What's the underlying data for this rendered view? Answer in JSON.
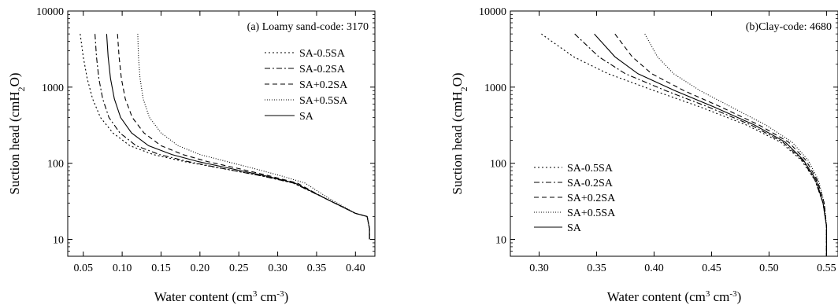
{
  "chart_data": [
    {
      "type": "line",
      "title": "(a) Loamy sand-code: 3170",
      "xlabel": "Water content (cm³ cm⁻³)",
      "ylabel": "Suction head (cmH₂O)",
      "xlim": [
        0.03,
        0.425
      ],
      "ylim": [
        6,
        10000
      ],
      "yscale": "log",
      "xticks": [
        0.05,
        0.1,
        0.15,
        0.2,
        0.25,
        0.3,
        0.35,
        0.4
      ],
      "xtick_labels": [
        "0.05",
        "0.10",
        "0.15",
        "0.20",
        "0.25",
        "0.30",
        "0.35",
        "0.40"
      ],
      "yticks": [
        10,
        100,
        1000,
        10000
      ],
      "ytick_labels": [
        "10",
        "100",
        "1000",
        "10000"
      ],
      "legend_position": "upper-right",
      "series": [
        {
          "name": "SA-0.5SA",
          "dash": "2,3",
          "x": [
            0.046,
            0.05,
            0.055,
            0.062,
            0.072,
            0.088,
            0.11,
            0.14,
            0.18,
            0.23,
            0.28,
            0.32,
            0.36,
            0.4,
            0.415,
            0.418,
            0.418
          ],
          "y": [
            5000,
            2500,
            1300,
            700,
            400,
            250,
            170,
            130,
            105,
            85,
            68,
            55,
            35,
            22,
            20,
            14,
            10
          ]
        },
        {
          "name": "SA-0.2SA",
          "dash": "7,3,2,3",
          "x": [
            0.065,
            0.067,
            0.07,
            0.075,
            0.083,
            0.097,
            0.118,
            0.148,
            0.185,
            0.23,
            0.28,
            0.32,
            0.36,
            0.4,
            0.415,
            0.418,
            0.418
          ],
          "y": [
            5000,
            2500,
            1300,
            700,
            400,
            250,
            170,
            130,
            105,
            85,
            68,
            55,
            35,
            22,
            20,
            14,
            10
          ]
        },
        {
          "name": "SA+0.2SA",
          "dash": "6,4",
          "x": [
            0.094,
            0.096,
            0.099,
            0.104,
            0.113,
            0.128,
            0.15,
            0.178,
            0.21,
            0.25,
            0.29,
            0.325,
            0.36,
            0.4,
            0.415,
            0.418,
            0.418
          ],
          "y": [
            5000,
            2500,
            1300,
            700,
            400,
            250,
            170,
            130,
            105,
            85,
            68,
            55,
            35,
            22,
            20,
            14,
            10
          ]
        },
        {
          "name": "SA+0.5SA",
          "dash": "1,2",
          "x": [
            0.12,
            0.121,
            0.123,
            0.127,
            0.135,
            0.15,
            0.172,
            0.2,
            0.235,
            0.27,
            0.305,
            0.335,
            0.365,
            0.4,
            0.415,
            0.418,
            0.418
          ],
          "y": [
            5000,
            2500,
            1300,
            700,
            400,
            250,
            170,
            130,
            105,
            85,
            68,
            55,
            35,
            22,
            20,
            14,
            10
          ]
        },
        {
          "name": "SA",
          "dash": "",
          "x": [
            0.08,
            0.082,
            0.085,
            0.09,
            0.098,
            0.112,
            0.134,
            0.164,
            0.198,
            0.24,
            0.285,
            0.322,
            0.36,
            0.4,
            0.415,
            0.418,
            0.418
          ],
          "y": [
            5000,
            2500,
            1300,
            700,
            400,
            250,
            170,
            130,
            105,
            85,
            68,
            55,
            35,
            22,
            20,
            14,
            10
          ]
        }
      ]
    },
    {
      "type": "line",
      "title": "(b)Clay-code: 4680",
      "xlabel": "Water content (cm³ cm⁻³)",
      "ylabel": "Suction head (cmH₂O)",
      "xlim": [
        0.275,
        0.56
      ],
      "ylim": [
        6,
        10000
      ],
      "yscale": "log",
      "xticks": [
        0.3,
        0.35,
        0.4,
        0.45,
        0.5,
        0.55
      ],
      "xtick_labels": [
        "0.30",
        "0.35",
        "0.40",
        "0.45",
        "0.50",
        "0.55"
      ],
      "yticks": [
        10,
        100,
        1000,
        10000
      ],
      "ytick_labels": [
        "10",
        "100",
        "1000",
        "10000"
      ],
      "legend_position": "lower-left",
      "series": [
        {
          "name": "SA-0.5SA",
          "dash": "2,3",
          "x": [
            0.302,
            0.33,
            0.36,
            0.4,
            0.44,
            0.48,
            0.51,
            0.528,
            0.54,
            0.547,
            0.55,
            0.55
          ],
          "y": [
            5000,
            2500,
            1500,
            900,
            550,
            320,
            190,
            110,
            60,
            30,
            15,
            6
          ]
        },
        {
          "name": "SA-0.2SA",
          "dash": "7,3,2,3",
          "x": [
            0.331,
            0.352,
            0.375,
            0.41,
            0.447,
            0.484,
            0.512,
            0.529,
            0.54,
            0.547,
            0.55,
            0.55
          ],
          "y": [
            5000,
            2500,
            1500,
            900,
            550,
            320,
            190,
            110,
            60,
            30,
            15,
            6
          ]
        },
        {
          "name": "SA+0.2SA",
          "dash": "6,4",
          "x": [
            0.366,
            0.381,
            0.398,
            0.426,
            0.458,
            0.491,
            0.517,
            0.532,
            0.542,
            0.548,
            0.55,
            0.55
          ],
          "y": [
            5000,
            2500,
            1500,
            900,
            550,
            320,
            190,
            110,
            60,
            30,
            15,
            6
          ]
        },
        {
          "name": "SA+0.5SA",
          "dash": "1,2",
          "x": [
            0.392,
            0.403,
            0.417,
            0.44,
            0.467,
            0.497,
            0.52,
            0.534,
            0.543,
            0.548,
            0.55,
            0.55
          ],
          "y": [
            5000,
            2500,
            1500,
            900,
            550,
            320,
            190,
            110,
            60,
            30,
            15,
            6
          ]
        },
        {
          "name": "SA",
          "dash": "",
          "x": [
            0.348,
            0.366,
            0.386,
            0.418,
            0.452,
            0.487,
            0.514,
            0.53,
            0.541,
            0.547,
            0.55,
            0.55
          ],
          "y": [
            5000,
            2500,
            1500,
            900,
            550,
            320,
            190,
            110,
            60,
            30,
            15,
            6
          ]
        }
      ]
    }
  ]
}
